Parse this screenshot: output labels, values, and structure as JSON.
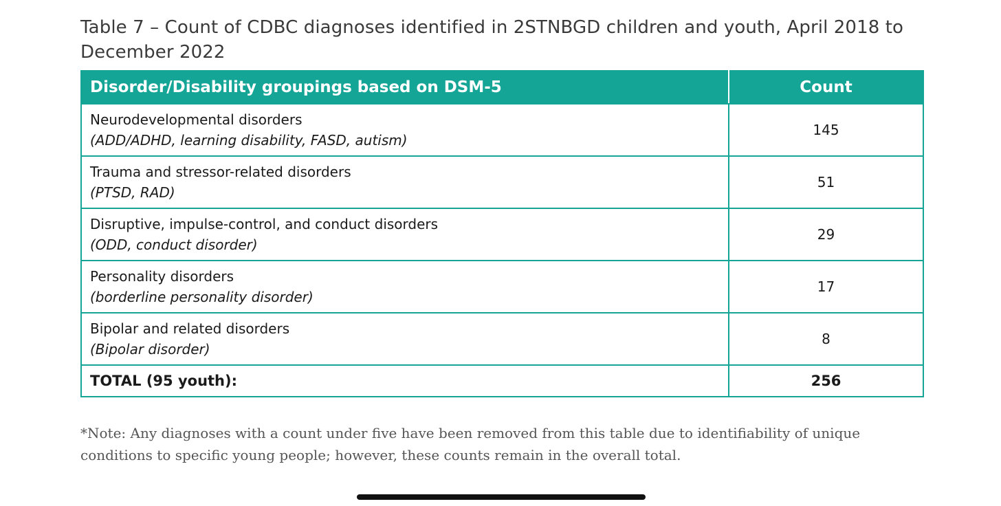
{
  "title": "Table 7 – Count of CDBC diagnoses identified in 2STNBGD children and youth, April 2018 to December 2022",
  "table": {
    "headers": {
      "grouping": "Disorder/Disability groupings based on DSM-5",
      "count": "Count"
    },
    "rows": [
      {
        "name": "Neurodevelopmental disorders",
        "examples": "(ADD/ADHD, learning disability, FASD, autism)",
        "count": "145"
      },
      {
        "name": "Trauma and stressor-related disorders",
        "examples": "(PTSD, RAD)",
        "count": "51"
      },
      {
        "name": "Disruptive, impulse-control, and conduct disorders",
        "examples": "(ODD, conduct disorder)",
        "count": "29"
      },
      {
        "name": "Personality disorders",
        "examples": "(borderline personality disorder)",
        "count": "17"
      },
      {
        "name": "Bipolar and related disorders",
        "examples": "(Bipolar disorder)",
        "count": "8"
      }
    ],
    "total": {
      "label": "TOTAL (95 youth):",
      "count": "256"
    }
  },
  "note": "*Note: Any diagnoses with a count under five have been removed from this table due to identifiability of unique conditions to specific young people; however, these counts remain in the overall total."
}
